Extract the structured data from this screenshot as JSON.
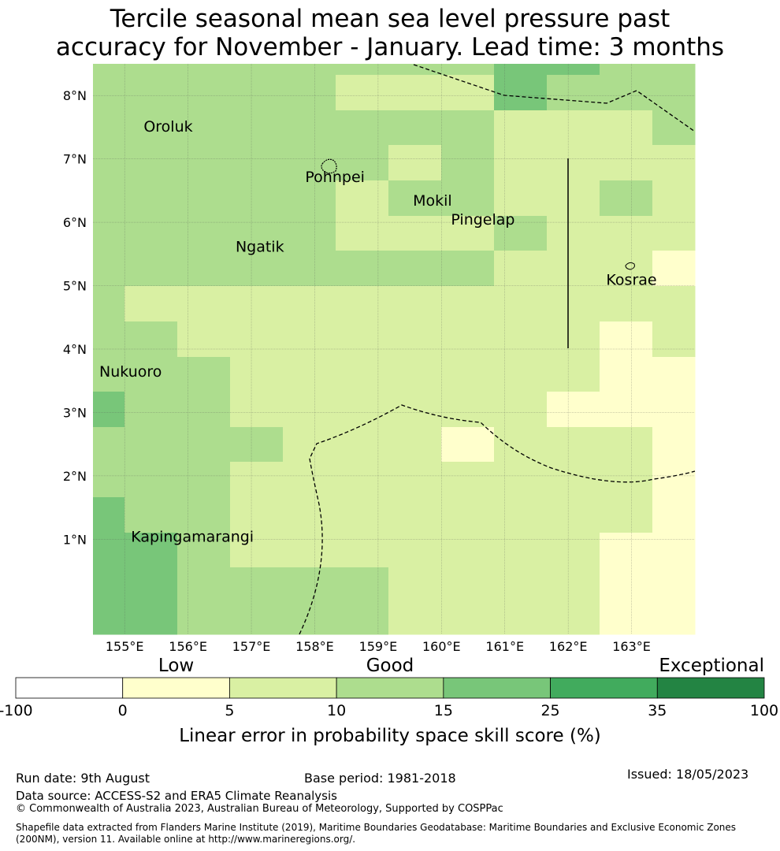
{
  "title": {
    "line1": "Tercile seasonal mean sea level pressure past",
    "line2": "accuracy for November - January. Lead time: 3 months"
  },
  "map": {
    "lon_range": [
      154.5,
      164.0
    ],
    "lat_range": [
      -0.5,
      8.5
    ],
    "lat_ticks": [
      {
        "value": 8,
        "label": "8°N"
      },
      {
        "value": 7,
        "label": "7°N"
      },
      {
        "value": 6,
        "label": "6°N"
      },
      {
        "value": 5,
        "label": "5°N"
      },
      {
        "value": 4,
        "label": "4°N"
      },
      {
        "value": 3,
        "label": "3°N"
      },
      {
        "value": 2,
        "label": "2°N"
      },
      {
        "value": 1,
        "label": "1°N"
      }
    ],
    "lon_ticks": [
      {
        "value": 155,
        "label": "155°E"
      },
      {
        "value": 156,
        "label": "156°E"
      },
      {
        "value": 157,
        "label": "157°E"
      },
      {
        "value": 158,
        "label": "158°E"
      },
      {
        "value": 159,
        "label": "159°E"
      },
      {
        "value": 160,
        "label": "160°E"
      },
      {
        "value": 161,
        "label": "161°E"
      },
      {
        "value": 162,
        "label": "162°E"
      },
      {
        "value": 163,
        "label": "163°E"
      }
    ],
    "places": [
      {
        "name": "Oroluk",
        "lon": 155.3,
        "lat": 7.52
      },
      {
        "name": "Pohnpei",
        "lon": 157.85,
        "lat": 6.72
      },
      {
        "name": "Mokil",
        "lon": 159.55,
        "lat": 6.35
      },
      {
        "name": "Pingelap",
        "lon": 160.15,
        "lat": 6.05
      },
      {
        "name": "Ngatik",
        "lon": 156.75,
        "lat": 5.62
      },
      {
        "name": "Kosrae",
        "lon": 162.6,
        "lat": 5.1
      },
      {
        "name": "Nukuoro",
        "lon": 154.6,
        "lat": 3.65
      },
      {
        "name": "Kapingamarangi",
        "lon": 155.1,
        "lat": 1.05
      }
    ]
  },
  "chart_data": {
    "type": "heatmap",
    "x_unit": "degrees East",
    "y_unit": "degrees North",
    "grid": true,
    "cell_size_deg": [
      0.833,
      0.556
    ],
    "row_lat_ranges_top_to_bottom": [
      [
        7.94,
        8.5
      ],
      [
        7.39,
        7.94
      ],
      [
        6.83,
        7.39
      ],
      [
        6.28,
        6.83
      ],
      [
        5.72,
        6.28
      ],
      [
        5.17,
        5.72
      ],
      [
        4.61,
        5.17
      ],
      [
        4.06,
        4.61
      ],
      [
        3.5,
        4.06
      ],
      [
        2.94,
        3.5
      ],
      [
        2.39,
        2.94
      ],
      [
        1.83,
        2.39
      ],
      [
        1.28,
        1.83
      ],
      [
        0.72,
        1.28
      ],
      [
        0.17,
        0.72
      ],
      [
        -0.39,
        0.17
      ]
    ],
    "col_lon_ranges_left_to_right": [
      [
        154.5,
        155.0
      ],
      [
        155.0,
        155.83
      ],
      [
        155.83,
        156.67
      ],
      [
        156.67,
        157.5
      ],
      [
        157.5,
        158.33
      ],
      [
        158.33,
        159.17
      ],
      [
        159.17,
        160.0
      ],
      [
        160.0,
        160.83
      ],
      [
        160.83,
        161.67
      ],
      [
        161.67,
        162.5
      ],
      [
        162.5,
        163.33
      ],
      [
        163.33,
        164.0
      ]
    ],
    "skill_score_category_by_cell": [
      [
        "10-15",
        "10-15",
        "10-15",
        "10-15",
        "10-15",
        "10-15",
        "10-15",
        "10-15",
        "15-25",
        "10-15",
        "10-15",
        "10-15"
      ],
      [
        "10-15",
        "10-15",
        "10-15",
        "10-15",
        "10-15",
        "5-10",
        "5-10",
        "5-10",
        "10-15",
        "10-15",
        "10-15",
        "10-15"
      ],
      [
        "10-15",
        "10-15",
        "10-15",
        "10-15",
        "10-15",
        "10-15",
        "10-15",
        "10-15",
        "5-10",
        "5-10",
        "5-10",
        "10-15"
      ],
      [
        "10-15",
        "10-15",
        "10-15",
        "10-15",
        "10-15",
        "10-15",
        "5-10",
        "10-15",
        "5-10",
        "5-10",
        "5-10",
        "5-10"
      ],
      [
        "10-15",
        "10-15",
        "10-15",
        "10-15",
        "10-15",
        "5-10",
        "10-15",
        "10-15",
        "5-10",
        "5-10",
        "10-15",
        "5-10"
      ],
      [
        "10-15",
        "10-15",
        "10-15",
        "10-15",
        "10-15",
        "5-10",
        "5-10",
        "5-10",
        "10-15",
        "5-10",
        "5-10",
        "5-10"
      ],
      [
        "10-15",
        "10-15",
        "10-15",
        "10-15",
        "10-15",
        "10-15",
        "10-15",
        "10-15",
        "5-10",
        "5-10",
        "5-10",
        "0-5"
      ],
      [
        "10-15",
        "5-10",
        "5-10",
        "5-10",
        "5-10",
        "5-10",
        "5-10",
        "5-10",
        "5-10",
        "5-10",
        "5-10",
        "5-10"
      ],
      [
        "10-15",
        "10-15",
        "5-10",
        "5-10",
        "5-10",
        "5-10",
        "5-10",
        "5-10",
        "5-10",
        "5-10",
        "0-5",
        "5-10"
      ],
      [
        "10-15",
        "10-15",
        "10-15",
        "5-10",
        "5-10",
        "5-10",
        "5-10",
        "5-10",
        "5-10",
        "5-10",
        "0-5",
        "0-5"
      ],
      [
        "15-25",
        "10-15",
        "10-15",
        "5-10",
        "5-10",
        "5-10",
        "5-10",
        "5-10",
        "5-10",
        "0-5",
        "0-5",
        "0-5"
      ],
      [
        "10-15",
        "10-15",
        "10-15",
        "10-15",
        "5-10",
        "5-10",
        "5-10",
        "0-5",
        "5-10",
        "5-10",
        "5-10",
        "0-5"
      ],
      [
        "10-15",
        "10-15",
        "10-15",
        "5-10",
        "5-10",
        "5-10",
        "5-10",
        "5-10",
        "5-10",
        "5-10",
        "5-10",
        "0-5"
      ],
      [
        "15-25",
        "10-15",
        "10-15",
        "5-10",
        "5-10",
        "5-10",
        "5-10",
        "5-10",
        "5-10",
        "5-10",
        "5-10",
        "0-5"
      ],
      [
        "15-25",
        "15-25",
        "10-15",
        "5-10",
        "5-10",
        "5-10",
        "5-10",
        "5-10",
        "5-10",
        "5-10",
        "0-5",
        "0-5"
      ],
      [
        "15-25",
        "15-25",
        "10-15",
        "10-15",
        "10-15",
        "10-15",
        "5-10",
        "5-10",
        "5-10",
        "5-10",
        "0-5",
        "0-5"
      ]
    ]
  },
  "colorbar": {
    "title": "Linear error in probability space skill score (%)",
    "category_labels": [
      {
        "text": "Low",
        "align": "center-of-segment-2"
      },
      {
        "text": "Good",
        "align": "center-of-segments-4-5"
      },
      {
        "text": "Exceptional",
        "align": "right"
      }
    ],
    "tick_labels": [
      "-100",
      "0",
      "5",
      "10",
      "15",
      "25",
      "35",
      "100"
    ],
    "segments": [
      {
        "range": "-100-0",
        "color": "#ffffff"
      },
      {
        "range": "0-5",
        "color": "#ffffcc"
      },
      {
        "range": "5-10",
        "color": "#d9f0a3"
      },
      {
        "range": "10-15",
        "color": "#addd8e"
      },
      {
        "range": "15-25",
        "color": "#78c679"
      },
      {
        "range": "25-35",
        "color": "#41ab5d"
      },
      {
        "range": "35-100",
        "color": "#238443"
      }
    ]
  },
  "footer": {
    "run_date": "Run date: 9th August",
    "base_period": "Base period: 1981-2018",
    "issued": "Issued: 18/05/2023",
    "data_source": "Data source: ACCESS-S2 and ERA5 Climate Reanalysis",
    "copyright": "© Commonwealth of Australia 2023, Australian Bureau of Meteorology, Supported by COSPPac",
    "shapefile": "Shapefile data extracted from Flanders Marine Institute (2019), Maritime Boundaries Geodatabase: Maritime Boundaries and Exclusive Economic Zones (200NM), version 11. Available online at http://www.marineregions.org/."
  }
}
